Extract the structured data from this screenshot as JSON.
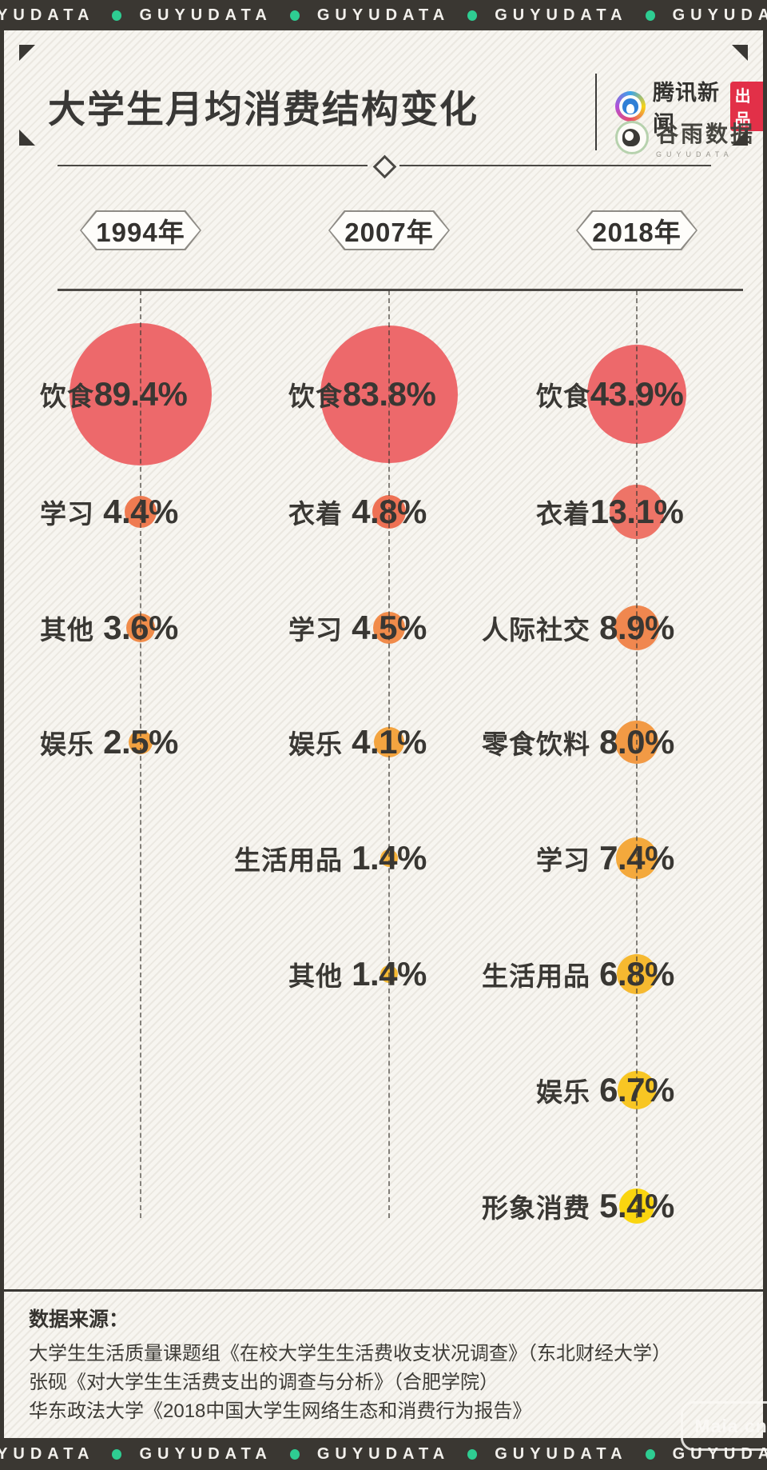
{
  "banner": {
    "brand": "GUYUDATA",
    "repeat": 5
  },
  "header": {
    "title": "大学生月均消费结构变化",
    "tencent_name": "腾讯新闻",
    "tencent_badge": "出品",
    "guyu_name": "谷雨数据",
    "guyu_sub": "GUYUDATA"
  },
  "chart_data": {
    "type": "bubble",
    "title": "大学生月均消费结构变化",
    "unit": "%",
    "value_suffix": "%",
    "bubble_scale": "radius ∝ sqrt(value)",
    "columns": [
      {
        "year": "1994年",
        "items": [
          {
            "label": "饮食",
            "value": 89.4,
            "color": "#ed696b"
          },
          {
            "label": "学习",
            "value": 4.4,
            "color": "#ef7b51"
          },
          {
            "label": "其他",
            "value": 3.6,
            "color": "#f08c4a"
          },
          {
            "label": "娱乐",
            "value": 2.5,
            "color": "#f3a140"
          }
        ]
      },
      {
        "year": "2007年",
        "items": [
          {
            "label": "饮食",
            "value": 83.8,
            "color": "#ed696b"
          },
          {
            "label": "衣着",
            "value": 4.8,
            "color": "#ee7154"
          },
          {
            "label": "学习",
            "value": 4.5,
            "color": "#f18b4a"
          },
          {
            "label": "娱乐",
            "value": 4.1,
            "color": "#f3a440"
          },
          {
            "label": "生活用品",
            "value": 1.4,
            "color": "#f5b13a"
          },
          {
            "label": "其他",
            "value": 1.4,
            "color": "#f6ba32"
          }
        ]
      },
      {
        "year": "2018年",
        "items": [
          {
            "label": "饮食",
            "value": 43.9,
            "color": "#ed696b"
          },
          {
            "label": "衣着",
            "value": 13.1,
            "color": "#ee7467"
          },
          {
            "label": "人际社交",
            "value": 8.9,
            "color": "#f0874f"
          },
          {
            "label": "零食饮料",
            "value": 8.0,
            "color": "#f29a45"
          },
          {
            "label": "学习",
            "value": 7.4,
            "color": "#f4a93c"
          },
          {
            "label": "生活用品",
            "value": 6.8,
            "color": "#f6b930"
          },
          {
            "label": "娱乐",
            "value": 6.7,
            "color": "#f8c623"
          },
          {
            "label": "形象消费",
            "value": 5.4,
            "color": "#fad50f"
          }
        ]
      }
    ]
  },
  "sources": {
    "heading": "数据来源：",
    "lines": [
      "大学生生活质量课题组《在校大学生生活费收支状况调查》（东北财经大学）",
      "张砚《对大学生生活费支出的调查与分析》（合肥学院）",
      "华东政法大学《2018中国大学生网络生态和消费行为报告》"
    ]
  },
  "watermark": "Maia.cn",
  "colors": {
    "bar_bg": "#3a3732",
    "bar_dot": "#2ecd92",
    "background": "#f7f5f0",
    "ink": "#3a3834",
    "badge_red": "#e23048",
    "guyu_green": "#b7d2ae"
  }
}
